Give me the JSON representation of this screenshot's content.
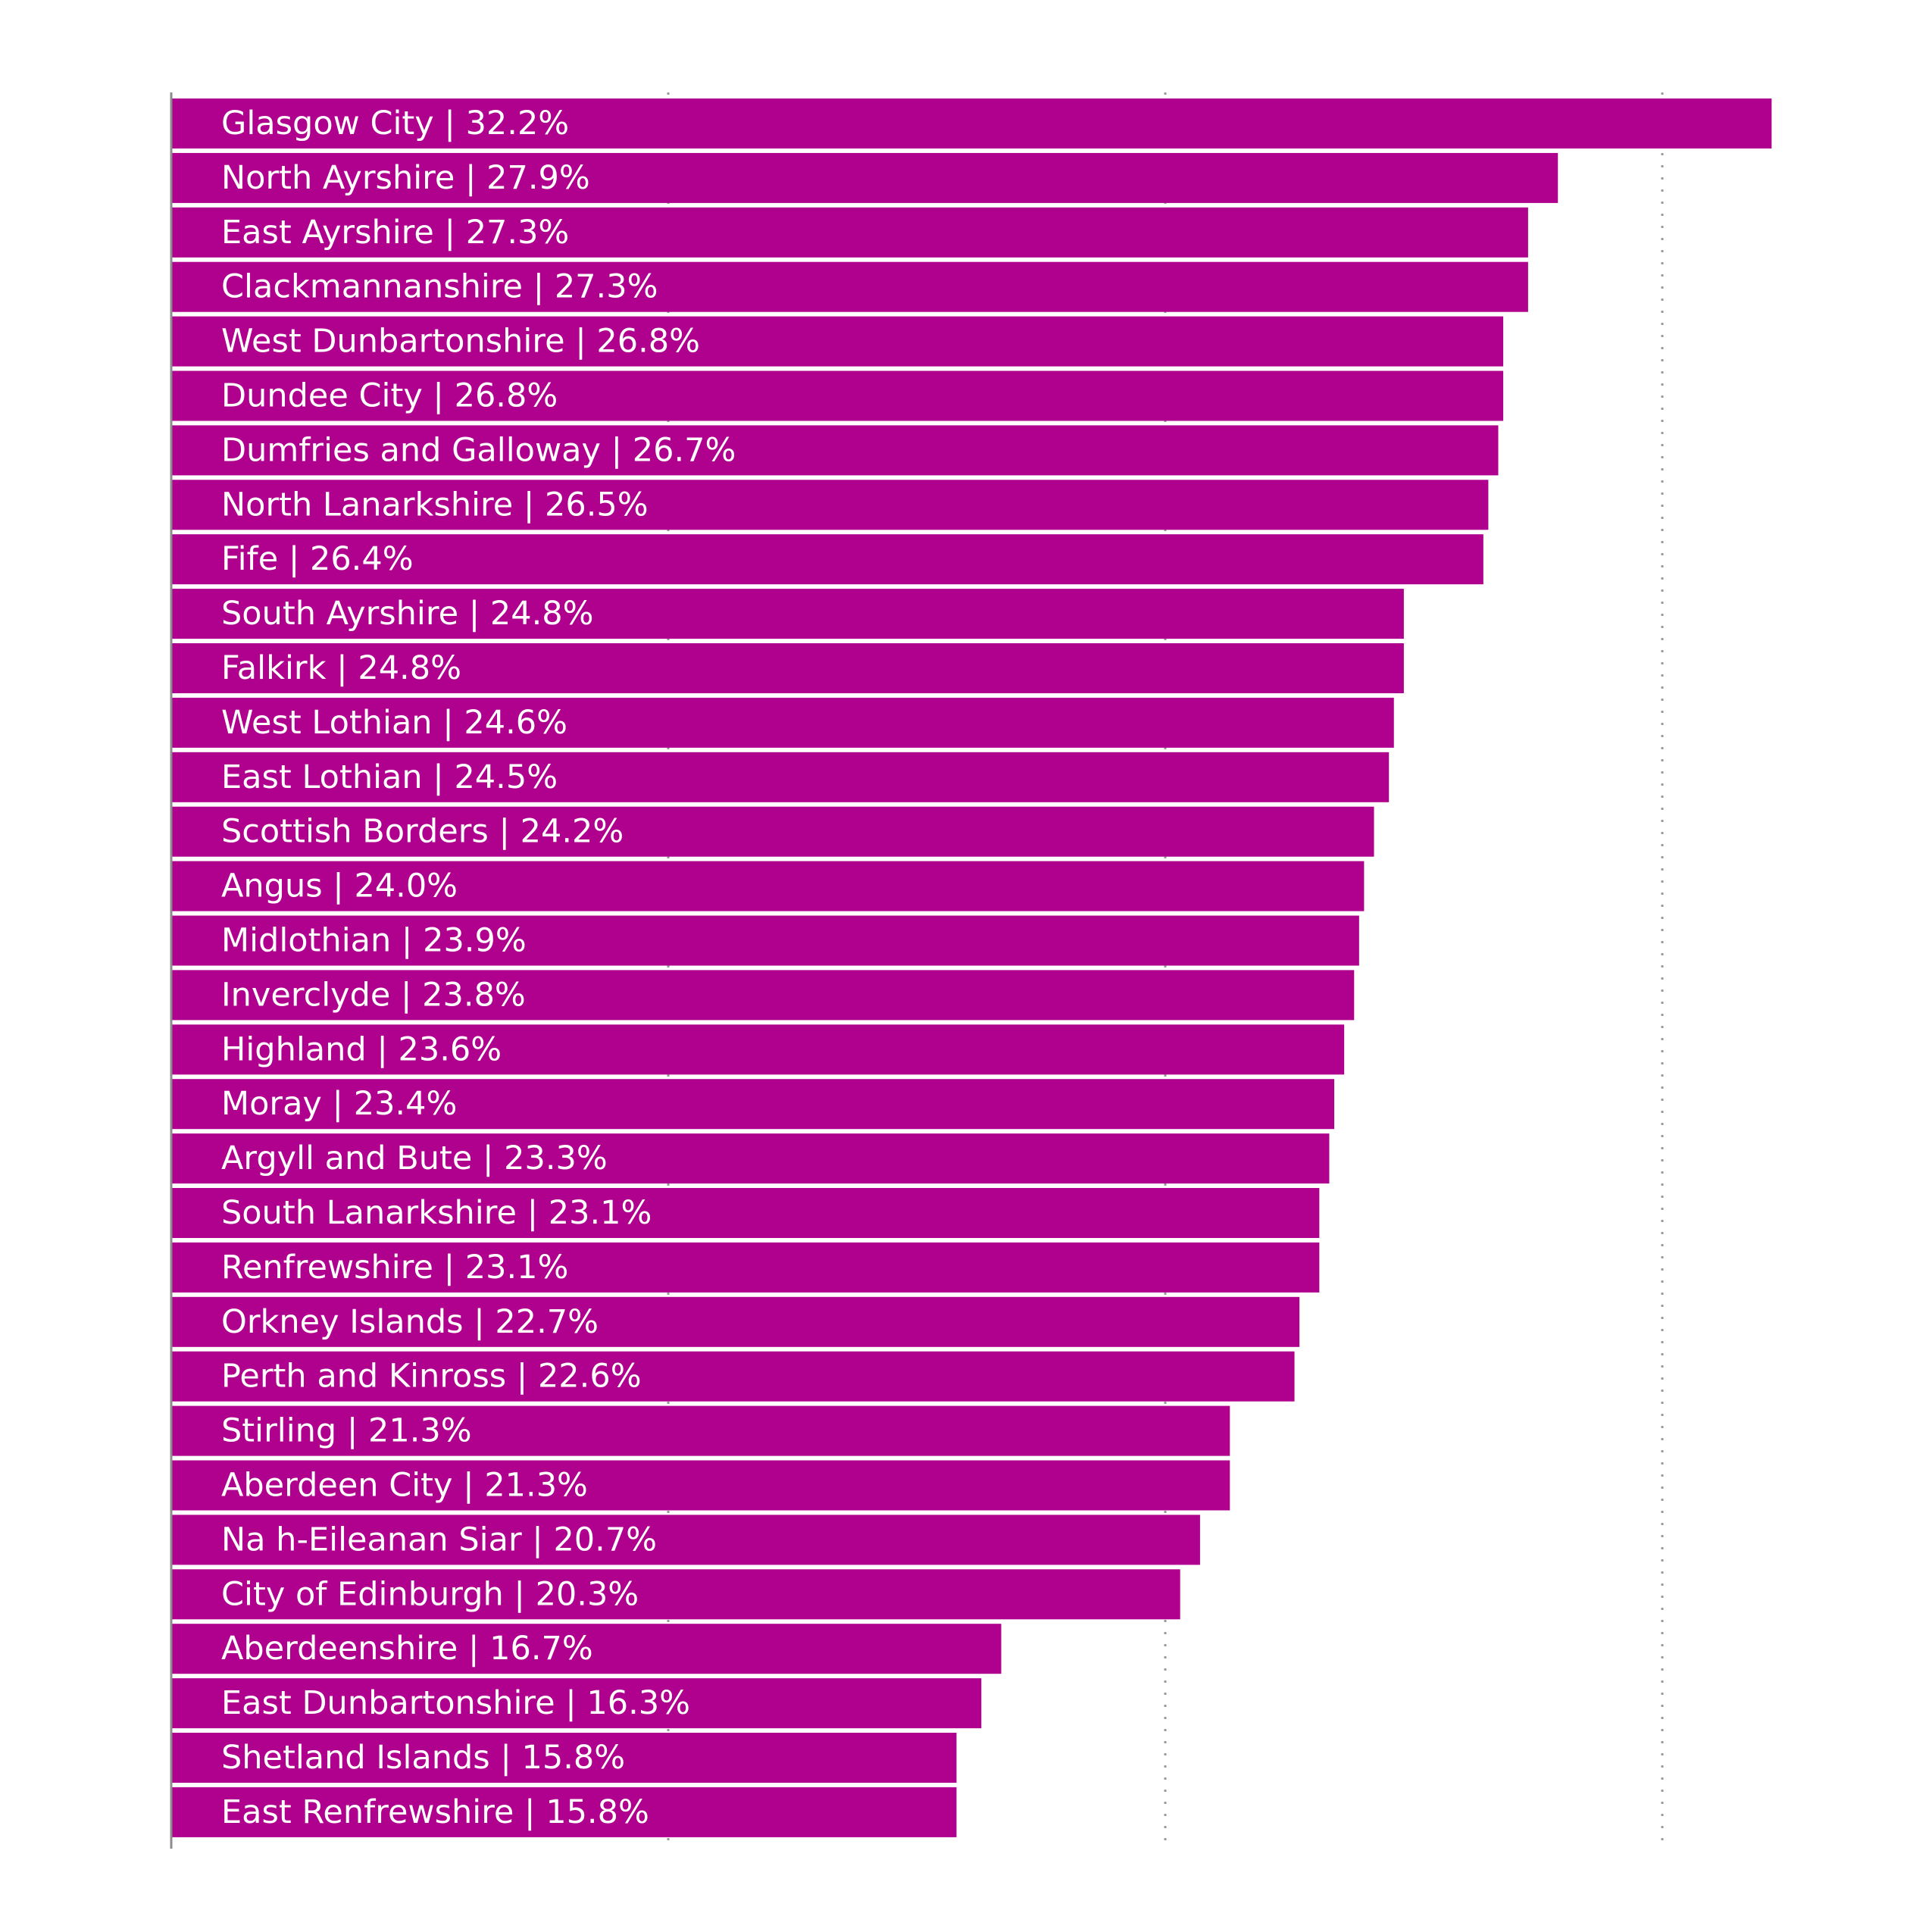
{
  "chart_data": {
    "type": "bar",
    "orientation": "horizontal",
    "bar_color": "#b0008e",
    "label_color": "#ffffff",
    "xlim": [
      0,
      35
    ],
    "x_gridlines": [
      10,
      20,
      30
    ],
    "grid": "vertical dotted",
    "categories": [
      "Glasgow City",
      "North Ayrshire",
      "East Ayrshire",
      "Clackmannanshire",
      "West Dunbartonshire",
      "Dundee City",
      "Dumfries and Galloway",
      "North Lanarkshire",
      "Fife",
      "South Ayrshire",
      "Falkirk",
      "West Lothian",
      "East Lothian",
      "Scottish Borders",
      "Angus",
      "Midlothian",
      "Inverclyde",
      "Highland",
      "Moray",
      "Argyll and Bute",
      "South Lanarkshire",
      "Renfrewshire",
      "Orkney Islands",
      "Perth and Kinross",
      "Stirling",
      "Aberdeen City",
      "Na h-Eileanan Siar",
      "City of Edinburgh",
      "Aberdeenshire",
      "East Dunbartonshire",
      "Shetland Islands",
      "East Renfrewshire"
    ],
    "values": [
      32.2,
      27.9,
      27.3,
      27.3,
      26.8,
      26.8,
      26.7,
      26.5,
      26.4,
      24.8,
      24.8,
      24.6,
      24.5,
      24.2,
      24.0,
      23.9,
      23.8,
      23.6,
      23.4,
      23.3,
      23.1,
      23.1,
      22.7,
      22.6,
      21.3,
      21.3,
      20.7,
      20.3,
      16.7,
      16.3,
      15.8,
      15.8
    ],
    "labels": [
      "Glasgow City | 32.2%",
      "North Ayrshire | 27.9%",
      "East Ayrshire | 27.3%",
      "Clackmannanshire | 27.3%",
      "West Dunbartonshire | 26.8%",
      "Dundee City | 26.8%",
      "Dumfries and Galloway | 26.7%",
      "North Lanarkshire | 26.5%",
      "Fife | 26.4%",
      "South Ayrshire | 24.8%",
      "Falkirk | 24.8%",
      "West Lothian | 24.6%",
      "East Lothian | 24.5%",
      "Scottish Borders | 24.2%",
      "Angus | 24.0%",
      "Midlothian | 23.9%",
      "Inverclyde | 23.8%",
      "Highland | 23.6%",
      "Moray | 23.4%",
      "Argyll and Bute | 23.3%",
      "South Lanarkshire | 23.1%",
      "Renfrewshire | 23.1%",
      "Orkney Islands | 22.7%",
      "Perth and Kinross | 22.6%",
      "Stirling | 21.3%",
      "Aberdeen City | 21.3%",
      "Na h-Eileanan Siar | 20.7%",
      "City of Edinburgh | 20.3%",
      "Aberdeenshire | 16.7%",
      "East Dunbartonshire | 16.3%",
      "Shetland Islands | 15.8%",
      "East Renfrewshire | 15.8%"
    ]
  }
}
